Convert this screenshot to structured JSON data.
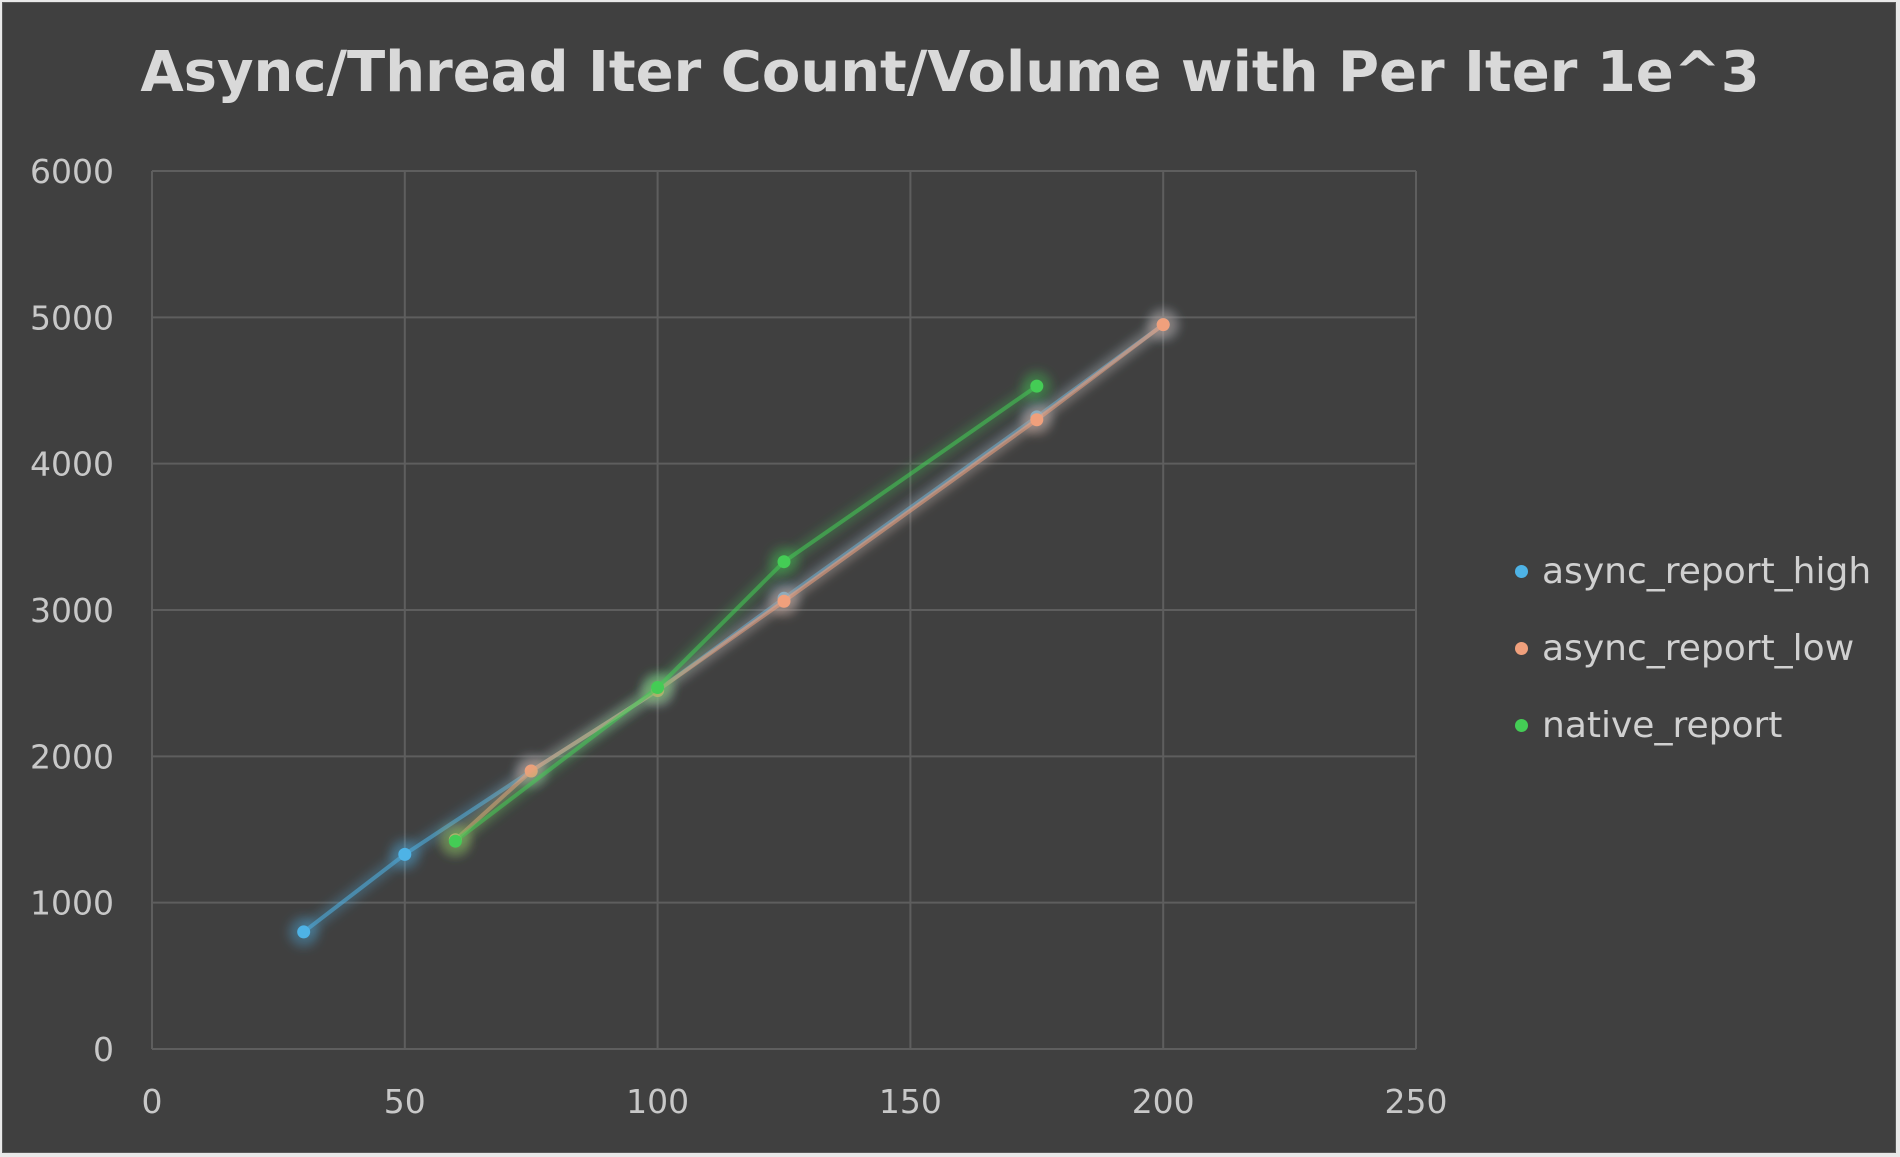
{
  "chart_data": {
    "type": "scatter",
    "title": "Async/Thread Iter Count/Volume with Per Iter 1e^3",
    "xlabel": "",
    "ylabel": "",
    "xlim": [
      0,
      250
    ],
    "ylim": [
      0,
      6000
    ],
    "x_ticks": [
      "0",
      "50",
      "100",
      "150",
      "200",
      "250"
    ],
    "y_ticks": [
      "0",
      "1000",
      "2000",
      "3000",
      "4000",
      "5000",
      "6000"
    ],
    "grid": true,
    "legend_position": "right",
    "series": [
      {
        "name": "async_report_high",
        "color": "#4eb3e6",
        "points": [
          {
            "x": 30,
            "y": 800
          },
          {
            "x": 50,
            "y": 1330
          },
          {
            "x": 75,
            "y": 1900
          },
          {
            "x": 100,
            "y": 2450
          },
          {
            "x": 125,
            "y": 3080
          },
          {
            "x": 175,
            "y": 4320
          },
          {
            "x": 200,
            "y": 4950
          }
        ]
      },
      {
        "name": "async_report_low",
        "color": "#f0a07c",
        "points": [
          {
            "x": 60,
            "y": 1430
          },
          {
            "x": 75,
            "y": 1900
          },
          {
            "x": 100,
            "y": 2450
          },
          {
            "x": 125,
            "y": 3060
          },
          {
            "x": 175,
            "y": 4300
          },
          {
            "x": 200,
            "y": 4950
          }
        ]
      },
      {
        "name": "native_report",
        "color": "#44cc55",
        "points": [
          {
            "x": 60,
            "y": 1420
          },
          {
            "x": 100,
            "y": 2470
          },
          {
            "x": 125,
            "y": 3330
          },
          {
            "x": 175,
            "y": 4530
          }
        ]
      }
    ]
  }
}
